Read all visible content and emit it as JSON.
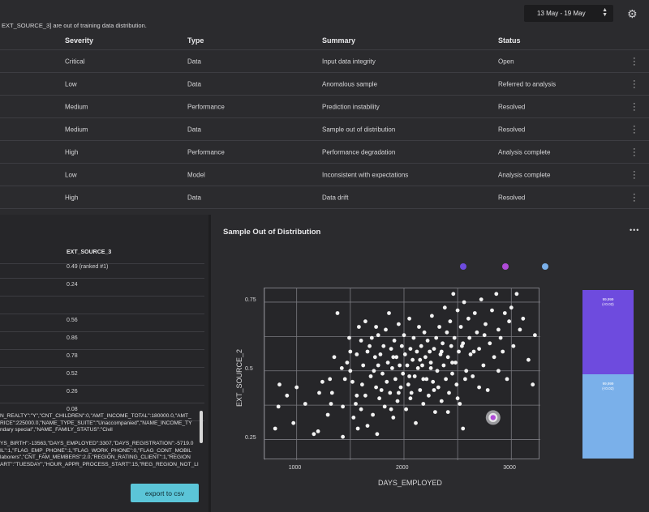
{
  "header": {
    "date_range": "13 May - 19 May",
    "settings_icon": "gear-icon"
  },
  "alerts_table": {
    "columns": [
      "Severity",
      "Type",
      "Summary",
      "Status"
    ],
    "rows": [
      {
        "severity": "Critical",
        "type": "Data",
        "summary": "Input data integrity",
        "status": "Open"
      },
      {
        "severity": "Low",
        "type": "Data",
        "summary": "Anomalous sample",
        "status": "Referred to analysis"
      },
      {
        "severity": "Medium",
        "type": "Performance",
        "summary": "Prediction instability",
        "status": "Resolved"
      },
      {
        "severity": "Medium",
        "type": "Data",
        "summary": "Sample out of distribution",
        "status": "Resolved"
      },
      {
        "severity": "High",
        "type": "Performance",
        "summary": "Performance degradation",
        "status": "Analysis complete"
      },
      {
        "severity": "Low",
        "type": "Model",
        "summary": "Inconsistent with expectations",
        "status": "Analysis complete"
      },
      {
        "severity": "High",
        "type": "Data",
        "summary": "Data drift",
        "status": "Resolved"
      }
    ]
  },
  "left_panel": {
    "notice": "EXT_SOURCE_3] are out of training data distribution.",
    "feature_table": {
      "header": "EXT_SOURCE_3",
      "values": [
        "0.49 (ranked #1)",
        "0.24",
        "",
        "0.56",
        "0.86",
        "0.78",
        "0.52",
        "0.26",
        "0.08"
      ]
    },
    "json_lines": [
      "N_REALTY\":\"Y\",\"CNT_CHILDREN\":0,\"AMT_INCOME_TOTAL\":180000.0,\"AMT_",
      "RICE\":225000.0,\"NAME_TYPE_SUITE\":\"Unaccompanied\",\"NAME_INCOME_TY",
      "ndary special\",\"NAME_FAMILY_STATUS\":\"Civil",
      "",
      "YS_BIRTH\":-13563,\"DAYS_EMPLOYED\":3307,\"DAYS_REGISTRATION\":-5719.0",
      "IL\":1,\"FLAG_EMP_PHONE\":1,\"FLAG_WORK_PHONE\":0,\"FLAG_CONT_MOBIL",
      "laborers\",\"CNT_FAM_MEMBERS\":2.0,\"REGION_RATING_CLIENT\":1,\"REGION",
      "ART\":\"TUESDAY\",\"HOUR_APPR_PROCESS_START\":15,\"REG_REGION_NOT_LI"
    ],
    "export_label": "export to csv"
  },
  "right_panel": {
    "title": "Sample Out of Distribution",
    "more_label": "•••",
    "legend": [
      {
        "label": "",
        "color": "#6e4bde"
      },
      {
        "label": "",
        "color": "#b04bd8"
      },
      {
        "label": "",
        "color": "#7ab0ea"
      }
    ],
    "bar_top_label": "99,999\n(<0.02)",
    "bar_bottom_label": "99,999\n(<0.02)"
  },
  "chart_data": {
    "type": "scatter",
    "xlabel": "DAYS_EMPLOYED",
    "ylabel": "EXT_SOURCE_2",
    "xlim": [
      700,
      3270
    ],
    "ylim": [
      0.175,
      0.8
    ],
    "xticks": [
      1000,
      2000,
      3000
    ],
    "yticks": [
      0.25,
      0.5,
      0.75
    ],
    "ytick_labels": [
      "0.25",
      "0.5",
      "0.75"
    ],
    "grid": true,
    "highlight": {
      "x": 2830,
      "y": 0.33,
      "color": "#b04bd8"
    },
    "points": [
      [
        840,
        0.45
      ],
      [
        830,
        0.37
      ],
      [
        800,
        0.29
      ],
      [
        910,
        0.41
      ],
      [
        970,
        0.31
      ],
      [
        1000,
        0.44
      ],
      [
        1080,
        0.38
      ],
      [
        1160,
        0.27
      ],
      [
        1210,
        0.42
      ],
      [
        1240,
        0.46
      ],
      [
        1310,
        0.47
      ],
      [
        1290,
        0.34
      ],
      [
        1320,
        0.38
      ],
      [
        1380,
        0.71
      ],
      [
        1420,
        0.51
      ],
      [
        1430,
        0.37
      ],
      [
        1430,
        0.26
      ],
      [
        1450,
        0.47
      ],
      [
        1490,
        0.62
      ],
      [
        1500,
        0.57
      ],
      [
        1500,
        0.5
      ],
      [
        1530,
        0.33
      ],
      [
        1550,
        0.38
      ],
      [
        1560,
        0.56
      ],
      [
        1570,
        0.29
      ],
      [
        1580,
        0.66
      ],
      [
        1600,
        0.61
      ],
      [
        1610,
        0.45
      ],
      [
        1620,
        0.52
      ],
      [
        1640,
        0.68
      ],
      [
        1640,
        0.41
      ],
      [
        1660,
        0.3
      ],
      [
        1660,
        0.57
      ],
      [
        1690,
        0.48
      ],
      [
        1700,
        0.62
      ],
      [
        1710,
        0.34
      ],
      [
        1730,
        0.55
      ],
      [
        1740,
        0.44
      ],
      [
        1750,
        0.27
      ],
      [
        1760,
        0.63
      ],
      [
        1760,
        0.52
      ],
      [
        1770,
        0.4
      ],
      [
        1780,
        0.56
      ],
      [
        1800,
        0.49
      ],
      [
        1810,
        0.59
      ],
      [
        1820,
        0.37
      ],
      [
        1830,
        0.65
      ],
      [
        1840,
        0.46
      ],
      [
        1850,
        0.53
      ],
      [
        1860,
        0.71
      ],
      [
        1870,
        0.42
      ],
      [
        1880,
        0.58
      ],
      [
        1890,
        0.51
      ],
      [
        1900,
        0.33
      ],
      [
        1910,
        0.61
      ],
      [
        1920,
        0.47
      ],
      [
        1930,
        0.55
      ],
      [
        1940,
        0.39
      ],
      [
        1950,
        0.67
      ],
      [
        1960,
        0.52
      ],
      [
        1970,
        0.44
      ],
      [
        1980,
        0.59
      ],
      [
        1990,
        0.49
      ],
      [
        2000,
        0.63
      ],
      [
        2010,
        0.56
      ],
      [
        2020,
        0.36
      ],
      [
        2030,
        0.52
      ],
      [
        2040,
        0.45
      ],
      [
        2050,
        0.69
      ],
      [
        2060,
        0.58
      ],
      [
        2070,
        0.42
      ],
      [
        2080,
        0.54
      ],
      [
        2090,
        0.62
      ],
      [
        2100,
        0.48
      ],
      [
        2110,
        0.31
      ],
      [
        2120,
        0.57
      ],
      [
        2130,
        0.51
      ],
      [
        2140,
        0.66
      ],
      [
        2150,
        0.43
      ],
      [
        2160,
        0.59
      ],
      [
        2170,
        0.52
      ],
      [
        2180,
        0.38
      ],
      [
        2190,
        0.64
      ],
      [
        2200,
        0.55
      ],
      [
        2210,
        0.47
      ],
      [
        2220,
        0.61
      ],
      [
        2230,
        0.41
      ],
      [
        2240,
        0.57
      ],
      [
        2250,
        0.53
      ],
      [
        2260,
        0.7
      ],
      [
        2270,
        0.46
      ],
      [
        2280,
        0.58
      ],
      [
        2290,
        0.35
      ],
      [
        2300,
        0.62
      ],
      [
        2310,
        0.5
      ],
      [
        2320,
        0.44
      ],
      [
        2330,
        0.66
      ],
      [
        2340,
        0.56
      ],
      [
        2350,
        0.39
      ],
      [
        2360,
        0.6
      ],
      [
        2370,
        0.52
      ],
      [
        2380,
        0.73
      ],
      [
        2390,
        0.47
      ],
      [
        2400,
        0.64
      ],
      [
        2410,
        0.55
      ],
      [
        2420,
        0.42
      ],
      [
        2430,
        0.68
      ],
      [
        2440,
        0.59
      ],
      [
        2450,
        0.49
      ],
      [
        2460,
        0.78
      ],
      [
        2470,
        0.62
      ],
      [
        2480,
        0.53
      ],
      [
        2490,
        0.45
      ],
      [
        2500,
        0.72
      ],
      [
        2510,
        0.57
      ],
      [
        2520,
        0.38
      ],
      [
        2530,
        0.66
      ],
      [
        2540,
        0.59
      ],
      [
        2550,
        0.29
      ],
      [
        2560,
        0.75
      ],
      [
        2580,
        0.5
      ],
      [
        2600,
        0.69
      ],
      [
        2610,
        0.62
      ],
      [
        2620,
        0.56
      ],
      [
        2640,
        0.48
      ],
      [
        2660,
        0.71
      ],
      [
        2680,
        0.64
      ],
      [
        2700,
        0.58
      ],
      [
        2720,
        0.76
      ],
      [
        2740,
        0.52
      ],
      [
        2760,
        0.67
      ],
      [
        2780,
        0.43
      ],
      [
        2800,
        0.6
      ],
      [
        2820,
        0.72
      ],
      [
        2840,
        0.55
      ],
      [
        2860,
        0.78
      ],
      [
        2880,
        0.65
      ],
      [
        2900,
        0.62
      ],
      [
        2920,
        0.57
      ],
      [
        2940,
        0.71
      ],
      [
        2960,
        0.47
      ],
      [
        2980,
        0.68
      ],
      [
        3000,
        0.73
      ],
      [
        3020,
        0.59
      ],
      [
        3050,
        0.78
      ],
      [
        3080,
        0.65
      ],
      [
        3110,
        0.69
      ],
      [
        3160,
        0.54
      ],
      [
        3200,
        0.45
      ],
      [
        3220,
        0.63
      ],
      [
        1200,
        0.28
      ],
      [
        1330,
        0.42
      ],
      [
        1520,
        0.46
      ],
      [
        1600,
        0.36
      ],
      [
        1720,
        0.5
      ],
      [
        1790,
        0.43
      ],
      [
        1900,
        0.55
      ],
      [
        2050,
        0.48
      ],
      [
        2150,
        0.54
      ],
      [
        2250,
        0.51
      ],
      [
        2350,
        0.57
      ],
      [
        2450,
        0.53
      ],
      [
        2550,
        0.6
      ],
      [
        2650,
        0.57
      ],
      [
        2750,
        0.63
      ],
      [
        1470,
        0.53
      ],
      [
        1680,
        0.59
      ],
      [
        1950,
        0.42
      ],
      [
        2180,
        0.47
      ],
      [
        2410,
        0.35
      ],
      [
        1560,
        0.41
      ],
      [
        1740,
        0.66
      ],
      [
        1880,
        0.36
      ],
      [
        2060,
        0.4
      ],
      [
        2280,
        0.43
      ],
      [
        2500,
        0.4
      ],
      [
        2700,
        0.44
      ],
      [
        2880,
        0.5
      ],
      [
        1350,
        0.55
      ],
      [
        2570,
        0.47
      ]
    ]
  }
}
